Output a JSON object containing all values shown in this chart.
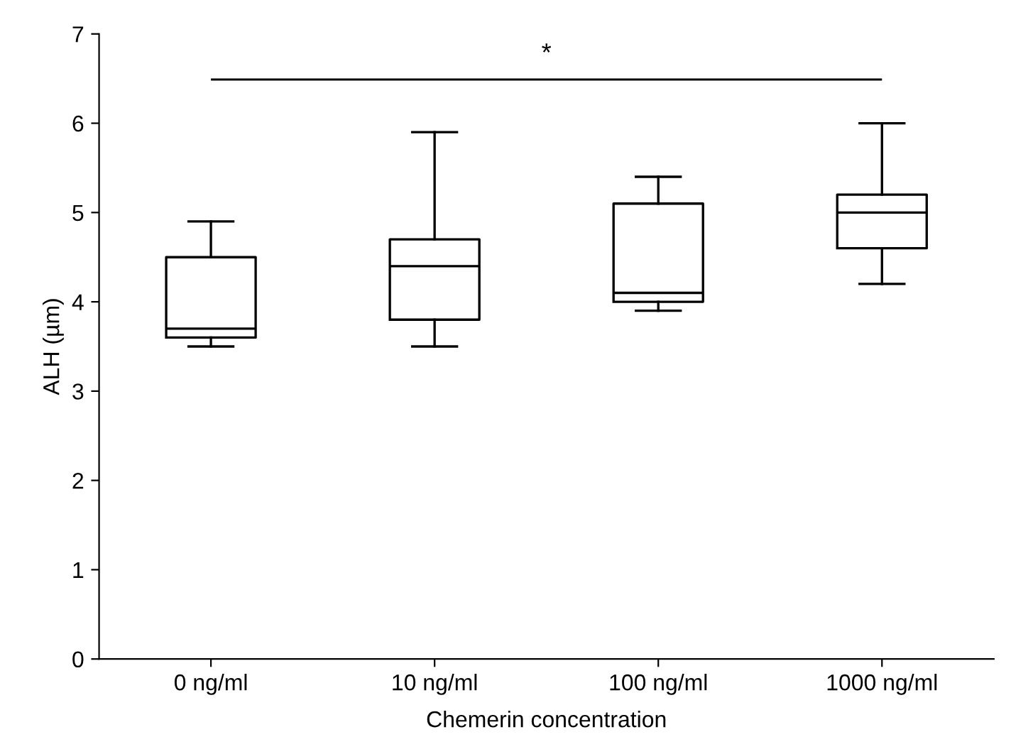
{
  "chart_data": {
    "type": "box",
    "xlabel": "Chemerin concentration",
    "ylabel": "ALH (µm)",
    "categories": [
      "0 ng/ml",
      "10 ng/ml",
      "100 ng/ml",
      "1000 ng/ml"
    ],
    "boxes": [
      {
        "low": 3.5,
        "q1": 3.6,
        "median": 3.7,
        "q3": 4.5,
        "high": 4.9
      },
      {
        "low": 3.5,
        "q1": 3.8,
        "median": 4.4,
        "q3": 4.7,
        "high": 5.9
      },
      {
        "low": 3.9,
        "q1": 4.0,
        "median": 4.1,
        "q3": 5.1,
        "high": 5.4
      },
      {
        "low": 4.2,
        "q1": 4.6,
        "median": 5.0,
        "q3": 5.2,
        "high": 6.0
      }
    ],
    "ylim": [
      0,
      7
    ],
    "yticks": [
      0,
      1,
      2,
      3,
      4,
      5,
      6,
      7
    ],
    "grid": false,
    "annotations": [
      "*"
    ]
  }
}
